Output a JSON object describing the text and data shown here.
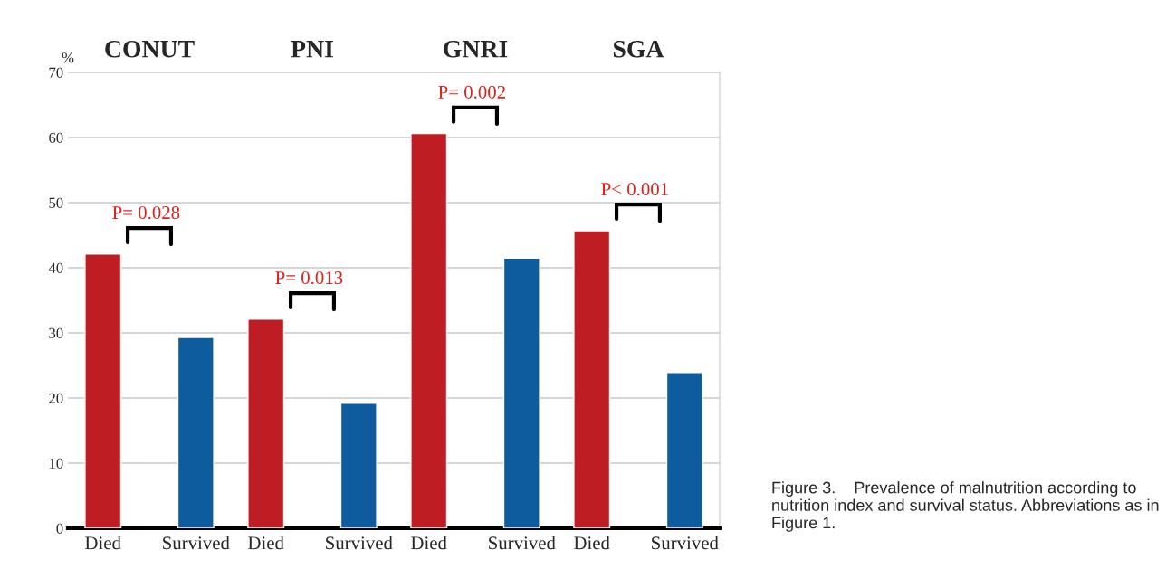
{
  "chart_data": {
    "type": "bar",
    "ylabel": "%",
    "categories": [
      "CONUT",
      "PNI",
      "GNRI",
      "SGA"
    ],
    "series": [
      {
        "name": "Died",
        "color": "#be1e23",
        "values": [
          42.1,
          32.1,
          60.6,
          45.7
        ]
      },
      {
        "name": "Survived",
        "color": "#0e5c9e",
        "values": [
          29.3,
          19.2,
          41.5,
          23.9
        ]
      }
    ],
    "ylim": [
      0,
      70
    ],
    "yticks": [
      0,
      10,
      20,
      30,
      40,
      50,
      60,
      70
    ],
    "grid": "y",
    "legend": false,
    "annotations": [
      "P= 0.028",
      "P= 0.013",
      "P= 0.002",
      "P< 0.001",
      "Figure 3.    Prevalence of malnutrition according to nutrition index and survival status. Abbreviations as in Figure 1."
    ]
  }
}
